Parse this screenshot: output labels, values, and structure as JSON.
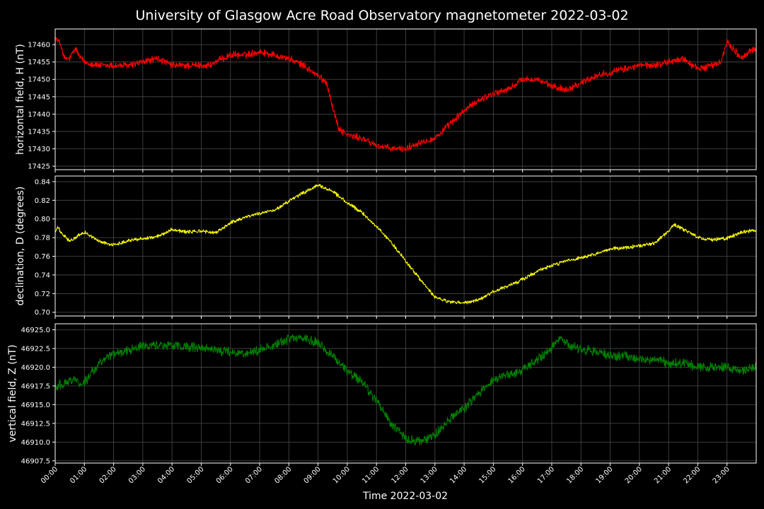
{
  "chart_data": {
    "type": "line",
    "title": "University of Glasgow Acre Road Observatory magnetometer 2022-03-02",
    "xlabel": "Time 2022-03-02",
    "x_unit": "hours",
    "xlim": [
      0,
      24
    ],
    "x_ticks": [
      0,
      1,
      2,
      3,
      4,
      5,
      6,
      7,
      8,
      9,
      10,
      11,
      12,
      13,
      14,
      15,
      16,
      17,
      18,
      19,
      20,
      21,
      22,
      23
    ],
    "x_tick_labels": [
      "00:00",
      "01:00",
      "02:00",
      "03:00",
      "04:00",
      "05:00",
      "06:00",
      "07:00",
      "08:00",
      "09:00",
      "10:00",
      "11:00",
      "12:00",
      "13:00",
      "14:00",
      "15:00",
      "16:00",
      "17:00",
      "18:00",
      "19:00",
      "20:00",
      "21:00",
      "22:00",
      "23:00"
    ],
    "grid": true,
    "panels": [
      {
        "ylabel": "horizontal field, H (nT)",
        "color": "#ff0000",
        "ylim": [
          17424,
          17464.5
        ],
        "y_ticks": [
          17425,
          17430,
          17435,
          17440,
          17445,
          17450,
          17455,
          17460
        ],
        "y_tick_labels": [
          "17425",
          "17430",
          "17435",
          "17440",
          "17445",
          "17450",
          "17455",
          "17460"
        ],
        "noise": 0.8,
        "x": [
          0,
          0.1,
          0.2,
          0.3,
          0.5,
          0.7,
          0.8,
          1.0,
          1.5,
          2.0,
          2.5,
          3.0,
          3.5,
          4.0,
          4.5,
          5.0,
          5.3,
          5.5,
          6.0,
          6.5,
          7.0,
          7.5,
          8.0,
          8.5,
          9.0,
          9.3,
          9.5,
          9.7,
          10.0,
          10.5,
          11.0,
          11.5,
          12.0,
          12.5,
          13.0,
          13.5,
          14.0,
          14.5,
          15.0,
          15.5,
          16.0,
          16.5,
          17.0,
          17.5,
          18.0,
          18.5,
          19.0,
          19.5,
          20.0,
          20.5,
          21.0,
          21.5,
          22.0,
          22.5,
          22.8,
          23.0,
          23.3,
          23.5,
          23.8,
          24.0
        ],
        "y": [
          17462,
          17461,
          17460,
          17456,
          17456,
          17459,
          17457,
          17455,
          17454,
          17454,
          17454,
          17455,
          17456,
          17454,
          17454,
          17454,
          17454,
          17455,
          17457,
          17457,
          17458,
          17457,
          17456,
          17454,
          17451,
          17449,
          17442,
          17436,
          17434,
          17433,
          17431,
          17430,
          17430,
          17432,
          17433,
          17437,
          17441,
          17444,
          17446,
          17447,
          17450,
          17450,
          17448,
          17447,
          17449,
          17451,
          17452,
          17453,
          17454,
          17454,
          17455,
          17456,
          17453,
          17454,
          17455,
          17461,
          17458,
          17456,
          17458,
          17459
        ]
      },
      {
        "ylabel": "declination, D (degrees)",
        "color": "#ffff00",
        "ylim": [
          0.696,
          0.846
        ],
        "y_ticks": [
          0.7,
          0.72,
          0.74,
          0.76,
          0.78,
          0.8,
          0.82,
          0.84
        ],
        "y_tick_labels": [
          "0.70",
          "0.72",
          "0.74",
          "0.76",
          "0.78",
          "0.80",
          "0.82",
          "0.84"
        ],
        "noise": 0.0015,
        "x": [
          0,
          0.1,
          0.2,
          0.5,
          1.0,
          1.5,
          2.0,
          2.5,
          3.0,
          3.5,
          4.0,
          4.5,
          5.0,
          5.5,
          6.0,
          6.5,
          7.0,
          7.5,
          8.0,
          8.5,
          9.0,
          9.3,
          9.5,
          10.0,
          10.5,
          11.0,
          11.5,
          12.0,
          12.5,
          13.0,
          13.5,
          14.0,
          14.5,
          15.0,
          15.5,
          16.0,
          16.5,
          17.0,
          17.5,
          18.0,
          18.5,
          19.0,
          19.5,
          20.0,
          20.5,
          21.0,
          21.2,
          21.5,
          22.0,
          22.5,
          23.0,
          23.5,
          24.0
        ],
        "y": [
          0.786,
          0.791,
          0.785,
          0.776,
          0.786,
          0.776,
          0.772,
          0.777,
          0.779,
          0.781,
          0.789,
          0.786,
          0.787,
          0.785,
          0.796,
          0.802,
          0.806,
          0.809,
          0.819,
          0.828,
          0.836,
          0.832,
          0.83,
          0.817,
          0.807,
          0.792,
          0.775,
          0.755,
          0.735,
          0.716,
          0.711,
          0.71,
          0.713,
          0.722,
          0.728,
          0.735,
          0.744,
          0.75,
          0.755,
          0.758,
          0.762,
          0.768,
          0.769,
          0.771,
          0.774,
          0.787,
          0.794,
          0.789,
          0.78,
          0.778,
          0.779,
          0.786,
          0.788
        ]
      },
      {
        "ylabel": "vertical field, Z (nT)",
        "color": "#008000",
        "ylim": [
          46907.2,
          46925.8
        ],
        "y_ticks": [
          46907.5,
          46910.0,
          46912.5,
          46915.0,
          46917.5,
          46920.0,
          46922.5,
          46925.0
        ],
        "y_tick_labels": [
          "46907.5",
          "46910.0",
          "46912.5",
          "46915.0",
          "46917.5",
          "46920.0",
          "46922.5",
          "46925.0"
        ],
        "noise": 0.5,
        "x": [
          0,
          0.3,
          0.6,
          0.9,
          1.0,
          1.5,
          2.0,
          2.5,
          3.0,
          3.5,
          4.0,
          4.5,
          5.0,
          5.5,
          6.0,
          6.5,
          7.0,
          7.5,
          8.0,
          8.5,
          9.0,
          9.5,
          10.0,
          10.5,
          11.0,
          11.5,
          12.0,
          12.5,
          13.0,
          13.5,
          14.0,
          14.5,
          15.0,
          15.5,
          16.0,
          16.5,
          17.0,
          17.3,
          17.5,
          18.0,
          18.5,
          19.0,
          19.5,
          20.0,
          20.5,
          21.0,
          21.5,
          22.0,
          22.5,
          23.0,
          23.5,
          24.0
        ],
        "y": [
          46917.5,
          46917.8,
          46918.5,
          46917.8,
          46918.0,
          46920.5,
          46921.8,
          46922.3,
          46922.8,
          46923.0,
          46922.9,
          46922.7,
          46922.5,
          46922.3,
          46922.0,
          46921.8,
          46922.3,
          46923.0,
          46923.8,
          46923.9,
          46923.3,
          46921.5,
          46919.5,
          46918.0,
          46915.5,
          46912.5,
          46910.5,
          46910.0,
          46911.0,
          46913.0,
          46914.5,
          46916.5,
          46918.5,
          46919.0,
          46919.5,
          46921.0,
          46922.5,
          46924.0,
          46923.0,
          46922.5,
          46922.0,
          46921.5,
          46921.5,
          46921.0,
          46921.0,
          46920.5,
          46920.5,
          46920.0,
          46920.0,
          46920.0,
          46919.5,
          46920.0
        ]
      }
    ]
  }
}
